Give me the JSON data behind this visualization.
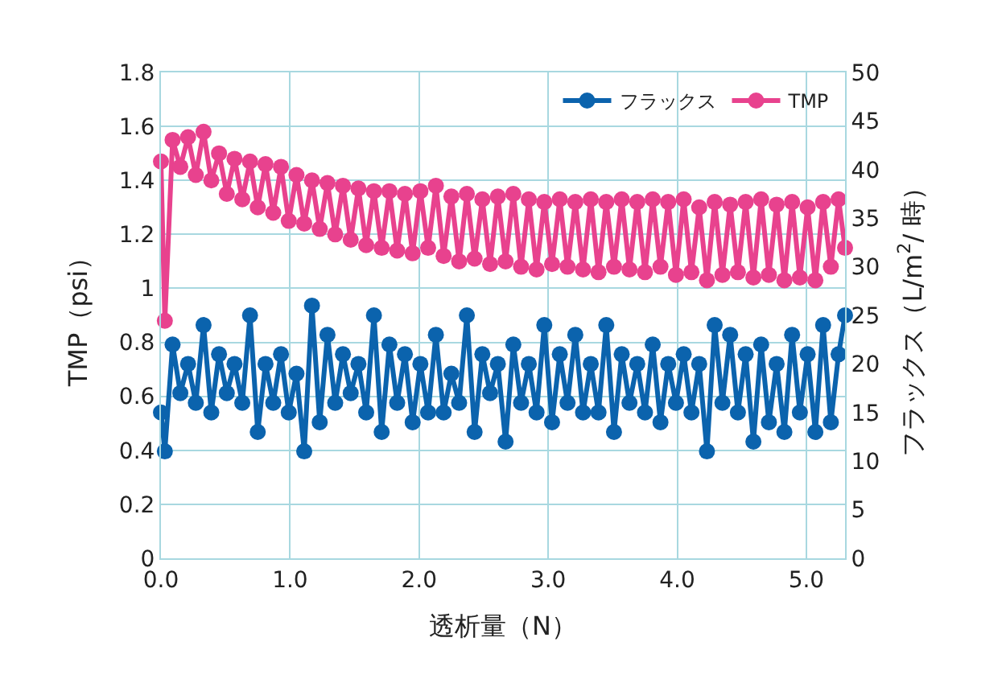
{
  "chart_data": {
    "type": "line",
    "xlabel": "透析量（N）",
    "ylabel": "TMP（psi）",
    "y2label": "フラックス（L/m$^{2}$/ 時）",
    "x": [
      0,
      0.03,
      0.09,
      0.15,
      0.21,
      0.27,
      0.33,
      0.39,
      0.45,
      0.51,
      0.57,
      0.63,
      0.69,
      0.75,
      0.81,
      0.87,
      0.93,
      0.99,
      1.05,
      1.11,
      1.17,
      1.23,
      1.29,
      1.35,
      1.41,
      1.47,
      1.53,
      1.59,
      1.65,
      1.71,
      1.77,
      1.83,
      1.89,
      1.95,
      2.01,
      2.07,
      2.13,
      2.19,
      2.25,
      2.31,
      2.37,
      2.43,
      2.49,
      2.55,
      2.61,
      2.67,
      2.73,
      2.79,
      2.85,
      2.91,
      2.97,
      3.03,
      3.09,
      3.15,
      3.21,
      3.27,
      3.33,
      3.39,
      3.45,
      3.51,
      3.57,
      3.63,
      3.69,
      3.75,
      3.81,
      3.87,
      3.93,
      3.99,
      4.05,
      4.11,
      4.17,
      4.23,
      4.29,
      4.35,
      4.41,
      4.47,
      4.53,
      4.59,
      4.65,
      4.71,
      4.77,
      4.83,
      4.89,
      4.95,
      5.01,
      5.07,
      5.13,
      5.19,
      5.25,
      5.3
    ],
    "series": [
      {
        "name": "フラックス",
        "color": "#0b63ad",
        "axis": "y2",
        "values": [
          15,
          11,
          22,
          17,
          20,
          16,
          24,
          15,
          21,
          17,
          20,
          16,
          25,
          13,
          20,
          16,
          21,
          15,
          19,
          11,
          26,
          14,
          23,
          16,
          21,
          17,
          20,
          15,
          25,
          13,
          22,
          16,
          21,
          14,
          20,
          15,
          23,
          15,
          19,
          16,
          25,
          13,
          21,
          17,
          20,
          12,
          22,
          16,
          20,
          15,
          24,
          14,
          21,
          16,
          23,
          15,
          20,
          15,
          24,
          13,
          21,
          16,
          20,
          15,
          22,
          14,
          20,
          16,
          21,
          15,
          20,
          11,
          24,
          16,
          23,
          15,
          21,
          12,
          22,
          14,
          20,
          13,
          23,
          15,
          21,
          13,
          24,
          14,
          21,
          25
        ]
      },
      {
        "name": "TMP",
        "color": "#e8428e",
        "values": [
          1.47,
          0.88,
          1.55,
          1.45,
          1.56,
          1.42,
          1.58,
          1.4,
          1.5,
          1.35,
          1.48,
          1.33,
          1.47,
          1.3,
          1.46,
          1.28,
          1.45,
          1.25,
          1.42,
          1.24,
          1.4,
          1.22,
          1.39,
          1.2,
          1.38,
          1.18,
          1.37,
          1.16,
          1.36,
          1.15,
          1.36,
          1.14,
          1.35,
          1.13,
          1.36,
          1.15,
          1.38,
          1.12,
          1.34,
          1.1,
          1.35,
          1.11,
          1.33,
          1.09,
          1.34,
          1.1,
          1.35,
          1.08,
          1.33,
          1.07,
          1.32,
          1.09,
          1.33,
          1.08,
          1.32,
          1.07,
          1.33,
          1.06,
          1.32,
          1.08,
          1.33,
          1.07,
          1.32,
          1.06,
          1.33,
          1.08,
          1.32,
          1.05,
          1.33,
          1.06,
          1.3,
          1.03,
          1.32,
          1.05,
          1.31,
          1.06,
          1.32,
          1.04,
          1.33,
          1.05,
          1.31,
          1.03,
          1.32,
          1.04,
          1.3,
          1.03,
          1.32,
          1.08,
          1.33,
          1.15
        ]
      }
    ],
    "xlim": [
      0,
      5.3
    ],
    "xticks": [
      {
        "value": 0,
        "label": "0.0"
      },
      {
        "value": 1,
        "label": "1.0"
      },
      {
        "value": 2,
        "label": "2.0"
      },
      {
        "value": 3,
        "label": "3.0"
      },
      {
        "value": 4,
        "label": "4.0"
      },
      {
        "value": 5,
        "label": "5.0"
      }
    ],
    "ylim": [
      0,
      1.8
    ],
    "yticks": [
      0,
      0.2,
      0.4,
      0.6,
      0.8,
      1,
      1.2,
      1.4,
      1.6,
      1.8
    ],
    "y2lim": [
      0,
      50
    ],
    "y2ticks": [
      0,
      5,
      10,
      15,
      20,
      25,
      30,
      35,
      40,
      45,
      50
    ],
    "grid": true,
    "legend": "top right",
    "marker": "circle",
    "line_style": "solid"
  }
}
